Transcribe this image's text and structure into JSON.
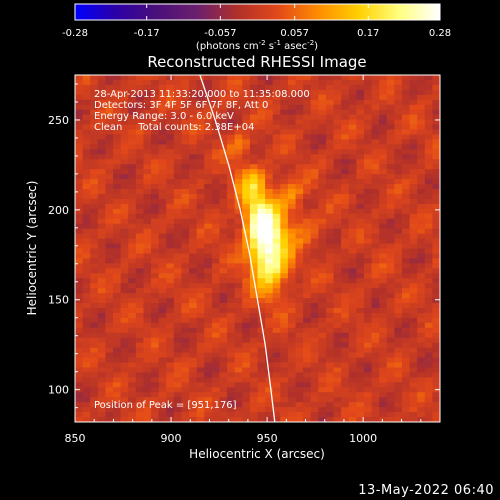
{
  "chart_data": {
    "type": "heatmap",
    "title": "Reconstructed RHESSI Image",
    "xlabel": "Heliocentric X (arcsec)",
    "ylabel": "Heliocentric Y (arcsec)",
    "xlim": [
      850,
      1040
    ],
    "ylim": [
      82,
      275
    ],
    "xticks": [
      "850",
      "900",
      "950",
      "1000"
    ],
    "xtick_values": [
      850,
      900,
      950,
      1000
    ],
    "yticks": [
      "100",
      "150",
      "200",
      "250"
    ],
    "ytick_values": [
      100,
      150,
      200,
      250
    ],
    "colorbar": {
      "range": [
        -0.28,
        0.28
      ],
      "tick_labels": [
        "-0.28",
        "-0.17",
        "-0.057",
        "0.057",
        "0.17",
        "0.28"
      ],
      "tick_values": [
        -0.28,
        -0.17,
        -0.057,
        0.057,
        0.17,
        0.28
      ],
      "unit_parts": [
        "(photons cm",
        "-2",
        " s",
        "-1",
        " asec",
        "-2",
        ")"
      ],
      "colormap": [
        "#0000ff",
        "#2b00a8",
        "#4a0f7a",
        "#6a1f6e",
        "#b0302a",
        "#e2481a",
        "#ff8c00",
        "#ffd000",
        "#ffff80",
        "#ffffff"
      ]
    },
    "annotations": [
      "28-Apr-2013 11:33:20.000 to 11:35:08.000",
      "Detectors: 3F 4F 5F 6F 7F 8F, Att 0",
      "Energy Range: 3.0 - 6.0 keV",
      "Clean     Total counts: 2.38E+04"
    ],
    "peak_label": "Position of Peak = [951,176]",
    "peak": [
      951,
      176
    ],
    "limb_points": [
      [
        915,
        275
      ],
      [
        923,
        250
      ],
      [
        930,
        225
      ],
      [
        936,
        200
      ],
      [
        941,
        175
      ],
      [
        945,
        150
      ],
      [
        949,
        125
      ],
      [
        952,
        100
      ],
      [
        954,
        82
      ]
    ],
    "sources": [
      {
        "x": 951,
        "y": 176,
        "value": 0.28,
        "sx": 7,
        "sy": 14
      },
      {
        "x": 946,
        "y": 195,
        "value": 0.2,
        "sx": 6,
        "sy": 9
      },
      {
        "x": 942,
        "y": 214,
        "value": 0.13,
        "sx": 6,
        "sy": 7
      },
      {
        "x": 962,
        "y": 208,
        "value": 0.09,
        "sx": 5,
        "sy": 6
      },
      {
        "x": 936,
        "y": 236,
        "value": 0.07,
        "sx": 5,
        "sy": 5
      },
      {
        "x": 970,
        "y": 190,
        "value": 0.06,
        "sx": 6,
        "sy": 6
      }
    ]
  },
  "footer": {
    "timestamp": "13-May-2022 06:40"
  }
}
